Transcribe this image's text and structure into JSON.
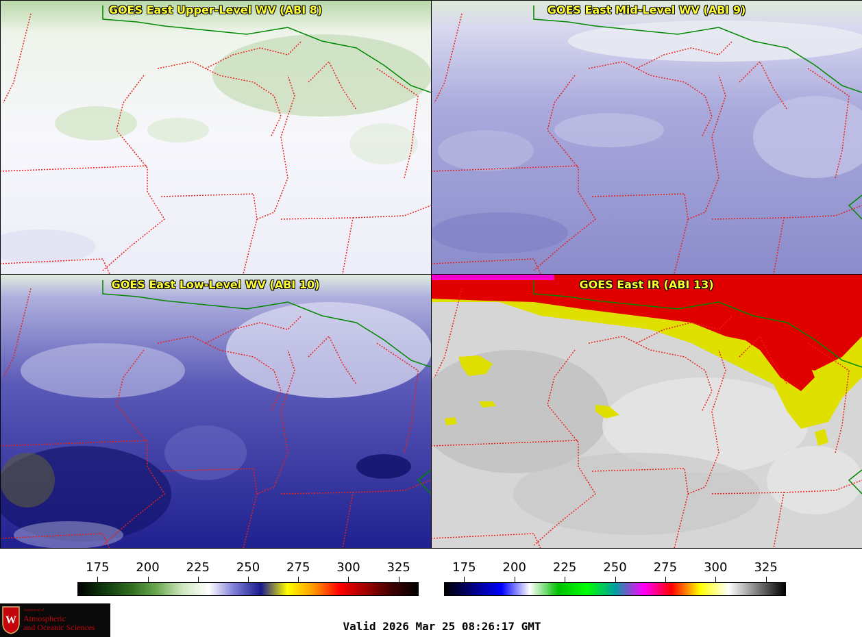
{
  "panels": {
    "upper": {
      "title": "GOES East Upper-Level WV (ABI 8)"
    },
    "mid": {
      "title": "GOES East Mid-Level WV (ABI 9)"
    },
    "low": {
      "title": "GOES East Low-Level WV (ABI 10)"
    },
    "ir": {
      "title": "GOES East IR (ABI 13)"
    }
  },
  "colorbars": {
    "wv": {
      "ticks": [
        "175",
        "200",
        "225",
        "250",
        "275",
        "300",
        "325"
      ],
      "colors": [
        "#000000",
        "#0f3a0f",
        "#2f6b1f",
        "#6aa84f",
        "#cfe8c0",
        "#ffffff",
        "#7a7ad6",
        "#1a1a8c",
        "#ffff00",
        "#ff9900",
        "#ff0000",
        "#a00000",
        "#400000",
        "#000000"
      ]
    },
    "ir": {
      "ticks": [
        "175",
        "200",
        "225",
        "250",
        "275",
        "300",
        "325"
      ],
      "colors": [
        "#000000",
        "#000080",
        "#0000ff",
        "#ffffff",
        "#00c000",
        "#00ff00",
        "#00a0a0",
        "#ff00ff",
        "#ff0000",
        "#ffff00",
        "#ffffff",
        "#808080",
        "#000000"
      ]
    },
    "range": [
      165,
      335
    ]
  },
  "footer": {
    "valid": "Valid 2026 Mar 25 08:26:17 GMT",
    "logo_dept": "Department of",
    "logo_line1": "Atmospheric",
    "logo_line2": "and Oceanic Sciences"
  },
  "colors": {
    "state_border": "#e8201a",
    "national_border": "#008800",
    "title_text": "#ffff33"
  }
}
